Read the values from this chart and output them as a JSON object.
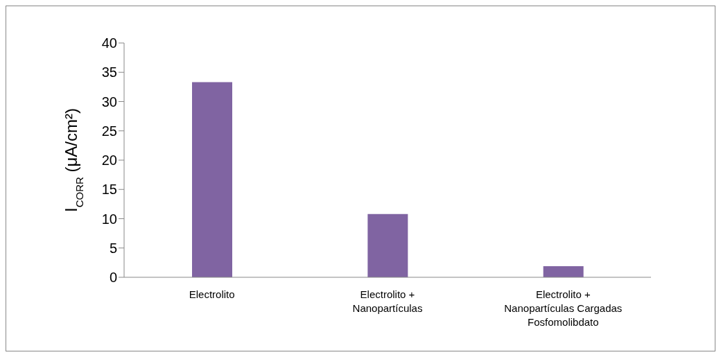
{
  "chart_data": {
    "type": "bar",
    "ylabel": "I$_{CORR}$ (μA/cm²)",
    "categories": [
      "Electrolito",
      "Electrolito + Nanopartículas",
      "Electrolito + Nanopartículas Cargadas Fosfomolibdato"
    ],
    "values": [
      33.3,
      10.8,
      1.9
    ],
    "color": "#8064a2",
    "ylim": [
      0,
      40
    ],
    "yticks": [
      0,
      5,
      10,
      15,
      20,
      25,
      30,
      35,
      40
    ],
    "grid": false,
    "legend": false
  }
}
